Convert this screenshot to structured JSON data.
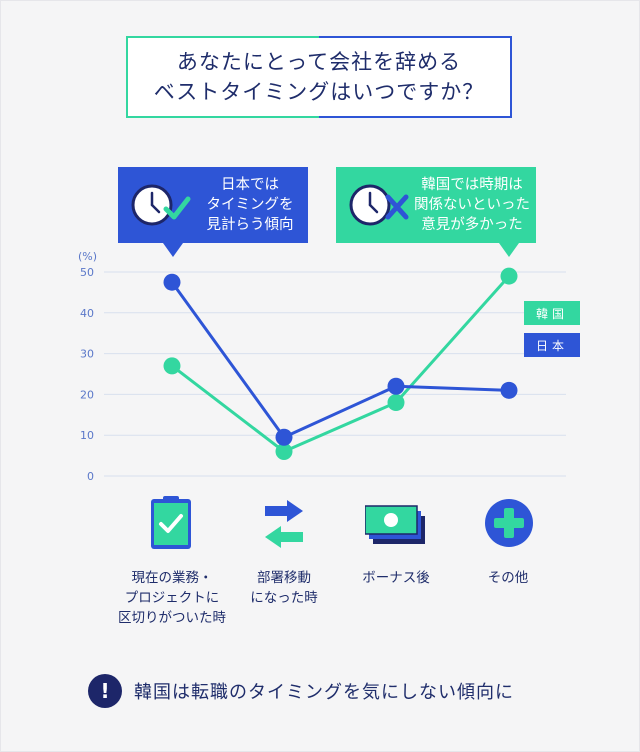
{
  "title": {
    "line1": "あなたにとって会社を辞める",
    "line2": "ベストタイミングはいつですか？"
  },
  "callouts": {
    "japan": {
      "line1": "日本では",
      "line2": "タイミングを",
      "line3": "見計らう傾向"
    },
    "korea": {
      "line1": "韓国では時期は",
      "line2": "関係ないといった",
      "line3": "意見が多かった"
    }
  },
  "colors": {
    "korea": "#33d7a0",
    "japan": "#2e55d6",
    "navy": "#1d2669",
    "grid": "#d8e0ee",
    "axis_text": "#5b78c9"
  },
  "chart_data": {
    "type": "line",
    "unit_label": "(%)",
    "categories": [
      "現在の業務・プロジェクトに区切りがついた時",
      "部署移動になった時",
      "ボーナス後",
      "その他"
    ],
    "yticks": [
      0,
      10,
      20,
      30,
      40,
      50
    ],
    "ylim": [
      0,
      50
    ],
    "series": [
      {
        "name": "韓国",
        "color": "#33d7a0",
        "values": [
          27,
          6,
          18,
          49
        ]
      },
      {
        "name": "日本",
        "color": "#2e55d6",
        "values": [
          47.5,
          9.5,
          22,
          21
        ]
      }
    ],
    "legend_position": "right"
  },
  "legend": {
    "korea": "韓国",
    "japan": "日本"
  },
  "categories_display": [
    {
      "line1": "現在の業務・",
      "line2": "プロジェクトに",
      "line3": "区切りがついた時"
    },
    {
      "line1": "部署移動",
      "line2": "になった時",
      "line3": ""
    },
    {
      "line1": "ボーナス後",
      "line2": "",
      "line3": ""
    },
    {
      "line1": "その他",
      "line2": "",
      "line3": ""
    }
  ],
  "category_icons": [
    "clipboard-check-icon",
    "transfer-arrows-icon",
    "banknotes-icon",
    "plus-circle-icon"
  ],
  "footer": {
    "mark": "!",
    "message": "韓国は転職のタイミングを気にしない傾向に"
  }
}
